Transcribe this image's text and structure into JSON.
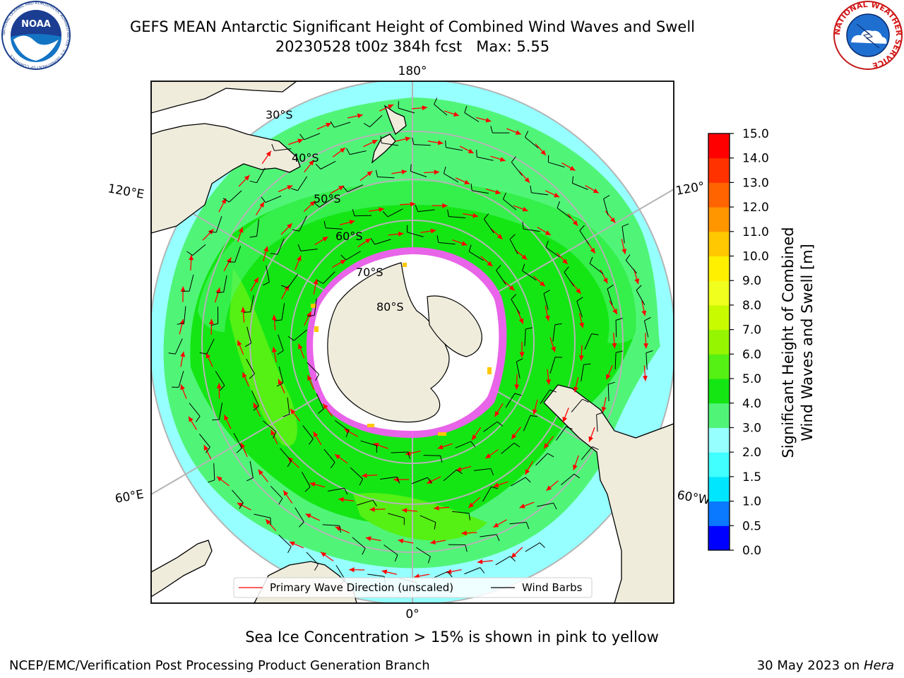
{
  "title": {
    "line1": "GEFS MEAN Antarctic Significant Height of Combined Wind Waves and Swell",
    "line2": "20230528 t00z 384h fcst   Max: 5.55"
  },
  "subtitle": "Sea Ice Concentration > 15% is shown in pink to yellow",
  "footer": {
    "left": "NCEP/EMC/Verification Post Processing Product Generation Branch",
    "date": "30 May 2023 on ",
    "machine": "Hera"
  },
  "logos": {
    "noaa": {
      "text": "NOAA",
      "ring_text": "NATIONAL OCEANIC AND ATMOSPHERIC ADMINISTRATION · U.S. DEPARTMENT OF COMMERCE"
    },
    "nws": {
      "ring_text": "NATIONAL WEATHER SERVICE"
    }
  },
  "map": {
    "projection": "south-polar stereographic",
    "longitude_labels": {
      "top": "180°",
      "bottom": "0°",
      "upper_left": "120°E",
      "lower_left": "60°E",
      "upper_right": "120°",
      "lower_right": "60°W"
    },
    "latitude_labels": [
      "30°S",
      "40°S",
      "50°S",
      "60°S",
      "70°S",
      "80°S"
    ],
    "legend": {
      "wave_label": "Primary Wave Direction (unscaled)",
      "barb_label": "Wind Barbs"
    },
    "colors": {
      "land": "#efecdc",
      "ice_shelf": "#ffffff",
      "wave_arrow": "#ff0000",
      "barb": "#000000",
      "grid": "#b4b4b4"
    }
  },
  "colorbar": {
    "label_line1": "Significant Height of Combined",
    "label_line2": "Wind Waves and Swell [m]",
    "ticks": [
      "0.0",
      "0.5",
      "1.0",
      "1.5",
      "2.0",
      "3.0",
      "4.0",
      "5.0",
      "6.0",
      "7.0",
      "8.0",
      "9.0",
      "10.0",
      "11.0",
      "12.0",
      "13.0",
      "14.0",
      "15.0"
    ],
    "colors": [
      "#0000ff",
      "#0a78ff",
      "#00e6ff",
      "#41ffff",
      "#96ffff",
      "#50f578",
      "#14e614",
      "#55f014",
      "#96f500",
      "#c8fa00",
      "#f0ff1e",
      "#fff000",
      "#ffc800",
      "#ff9600",
      "#ff6400",
      "#ff3200",
      "#ff0000"
    ]
  }
}
